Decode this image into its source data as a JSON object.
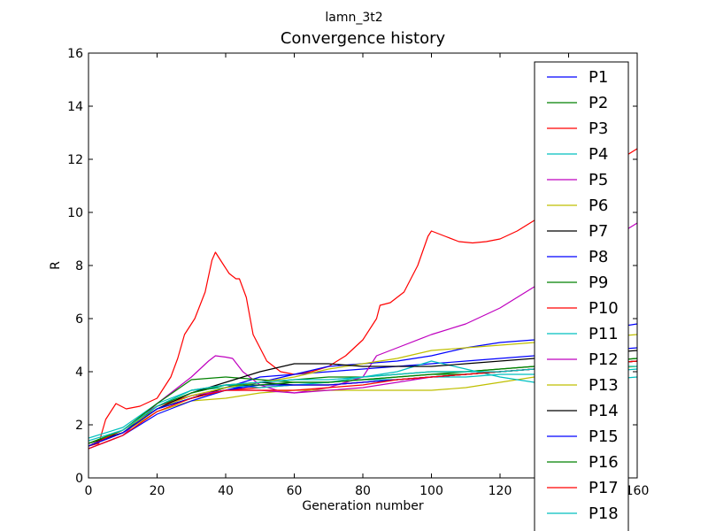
{
  "suptitle": "lamn_3t2",
  "chart_data": {
    "type": "line",
    "title": "Convergence history",
    "xlabel": "Generation number",
    "ylabel": "R",
    "xlim": [
      0,
      160
    ],
    "ylim": [
      0,
      16
    ],
    "xticks": [
      "0",
      "20",
      "40",
      "60",
      "80",
      "100",
      "120",
      "140",
      "160"
    ],
    "yticks": [
      "0",
      "2",
      "4",
      "6",
      "8",
      "10",
      "12",
      "14",
      "16"
    ],
    "grid": false,
    "legend_position": "right",
    "series": [
      {
        "name": "P1",
        "color": "#0000ff",
        "x": [
          0,
          10,
          20,
          30,
          40,
          50,
          60,
          70,
          80,
          90,
          100,
          110,
          120,
          130,
          140,
          150,
          160
        ],
        "y": [
          1.2,
          1.8,
          2.6,
          3.0,
          3.4,
          3.8,
          3.9,
          4.0,
          4.1,
          4.2,
          4.3,
          4.4,
          4.5,
          4.6,
          4.7,
          4.8,
          4.9
        ]
      },
      {
        "name": "P2",
        "color": "#008000",
        "x": [
          0,
          10,
          20,
          30,
          40,
          50,
          60,
          70,
          80,
          90,
          100,
          110,
          120,
          130,
          140,
          150,
          160
        ],
        "y": [
          1.3,
          1.7,
          2.7,
          3.3,
          3.5,
          3.6,
          3.7,
          3.8,
          3.8,
          3.9,
          4.0,
          4.0,
          4.1,
          4.2,
          4.3,
          4.4,
          4.5
        ]
      },
      {
        "name": "P3",
        "color": "#ff0000",
        "x": [
          0,
          3,
          5,
          8,
          11,
          15,
          20,
          24,
          26,
          28,
          31,
          34,
          36,
          37,
          39,
          41,
          43,
          44,
          46,
          48,
          52,
          56,
          60,
          65,
          70,
          75,
          80,
          84,
          85,
          88,
          92,
          96,
          99,
          100,
          104,
          108,
          112,
          116,
          120,
          125,
          130,
          135,
          140,
          150,
          160
        ],
        "y": [
          1.2,
          1.3,
          2.2,
          2.8,
          2.6,
          2.7,
          3.0,
          3.8,
          4.5,
          5.4,
          6.0,
          7.0,
          8.2,
          8.5,
          8.1,
          7.7,
          7.5,
          7.5,
          6.8,
          5.4,
          4.4,
          4.0,
          3.9,
          4.0,
          4.2,
          4.6,
          5.2,
          6.0,
          6.5,
          6.6,
          7.0,
          8.0,
          9.1,
          9.3,
          9.1,
          8.9,
          8.85,
          8.9,
          9.0,
          9.3,
          9.7,
          10.2,
          10.8,
          11.6,
          12.4
        ]
      },
      {
        "name": "P4",
        "color": "#00bfbf",
        "x": [
          0,
          10,
          20,
          30,
          40,
          50,
          60,
          70,
          80,
          90,
          100,
          110,
          120,
          130,
          140,
          150,
          160
        ],
        "y": [
          1.5,
          1.9,
          2.8,
          3.3,
          3.4,
          3.5,
          3.6,
          3.6,
          3.7,
          3.7,
          3.8,
          3.8,
          3.9,
          3.9,
          4.0,
          4.0,
          4.1
        ]
      },
      {
        "name": "P5",
        "color": "#bf00bf",
        "x": [
          0,
          10,
          20,
          30,
          35,
          37,
          40,
          42,
          45,
          50,
          55,
          60,
          65,
          70,
          75,
          80,
          84,
          90,
          100,
          110,
          120,
          130,
          140,
          150,
          160
        ],
        "y": [
          1.1,
          1.6,
          2.8,
          3.8,
          4.4,
          4.6,
          4.55,
          4.5,
          4.0,
          3.5,
          3.3,
          3.2,
          3.3,
          3.4,
          3.6,
          3.8,
          4.6,
          4.9,
          5.4,
          5.8,
          6.4,
          7.2,
          8.0,
          8.8,
          9.6
        ]
      },
      {
        "name": "P6",
        "color": "#bfbf00",
        "x": [
          0,
          10,
          20,
          30,
          40,
          50,
          60,
          70,
          80,
          90,
          100,
          110,
          120,
          130,
          140,
          150,
          160
        ],
        "y": [
          1.2,
          1.7,
          2.5,
          2.9,
          3.0,
          3.2,
          3.3,
          3.3,
          3.3,
          3.3,
          3.3,
          3.4,
          3.6,
          3.8,
          4.0,
          4.1,
          4.2
        ]
      },
      {
        "name": "P7",
        "color": "#000000",
        "x": [
          0,
          10,
          20,
          30,
          40,
          50,
          60,
          70,
          80,
          90,
          100,
          110,
          120,
          130,
          140,
          150,
          160
        ],
        "y": [
          1.3,
          1.7,
          2.6,
          3.0,
          3.4,
          3.6,
          3.5,
          3.5,
          3.6,
          3.7,
          3.8,
          3.9,
          4.0,
          4.1,
          4.2,
          4.3,
          4.4
        ]
      },
      {
        "name": "P8",
        "color": "#0000ff",
        "x": [
          0,
          10,
          20,
          30,
          40,
          50,
          60,
          70,
          80,
          90,
          100,
          110,
          120,
          130,
          140,
          150,
          160
        ],
        "y": [
          1.1,
          1.6,
          2.4,
          2.9,
          3.3,
          3.6,
          3.9,
          4.2,
          4.3,
          4.4,
          4.6,
          4.9,
          5.1,
          5.2,
          5.4,
          5.6,
          5.8
        ]
      },
      {
        "name": "P9",
        "color": "#008000",
        "x": [
          0,
          10,
          20,
          30,
          40,
          50,
          60,
          70,
          80,
          90,
          100,
          110,
          120,
          130,
          140,
          150,
          160
        ],
        "y": [
          1.2,
          1.8,
          2.8,
          3.7,
          3.8,
          3.7,
          3.6,
          3.6,
          3.7,
          3.8,
          3.9,
          4.0,
          4.1,
          4.2,
          4.3,
          4.4,
          4.5
        ]
      },
      {
        "name": "P10",
        "color": "#ff0000",
        "x": [
          0,
          10,
          20,
          30,
          40,
          50,
          60,
          70,
          80,
          90,
          100,
          110,
          120,
          130,
          140,
          150,
          160
        ],
        "y": [
          1.2,
          1.8,
          2.7,
          3.1,
          3.3,
          3.4,
          3.5,
          3.5,
          3.6,
          3.7,
          3.8,
          3.9,
          4.0,
          4.1,
          4.2,
          4.3,
          4.4
        ]
      },
      {
        "name": "P11",
        "color": "#00bfbf",
        "x": [
          0,
          10,
          20,
          30,
          40,
          50,
          60,
          70,
          80,
          90,
          100,
          110,
          120,
          130,
          140,
          150,
          160
        ],
        "y": [
          1.3,
          1.8,
          2.7,
          3.2,
          3.5,
          3.4,
          3.5,
          3.6,
          3.8,
          4.0,
          4.4,
          4.1,
          3.8,
          3.6,
          3.6,
          3.7,
          3.8
        ]
      },
      {
        "name": "P12",
        "color": "#bf00bf",
        "x": [
          0,
          10,
          20,
          30,
          40,
          50,
          60,
          70,
          80,
          90,
          100,
          110,
          120,
          130,
          140,
          150,
          160
        ],
        "y": [
          1.2,
          1.7,
          2.6,
          3.1,
          3.3,
          3.3,
          3.2,
          3.3,
          3.4,
          3.6,
          3.8,
          3.9,
          4.0,
          4.1,
          4.2,
          4.3,
          4.4
        ]
      },
      {
        "name": "P13",
        "color": "#bfbf00",
        "x": [
          0,
          10,
          20,
          30,
          40,
          50,
          60,
          70,
          80,
          90,
          100,
          110,
          120,
          130,
          140,
          150,
          160
        ],
        "y": [
          1.3,
          1.8,
          2.6,
          3.1,
          3.4,
          3.6,
          3.8,
          4.1,
          4.3,
          4.5,
          4.8,
          4.9,
          5.0,
          5.1,
          5.2,
          5.3,
          5.4
        ]
      },
      {
        "name": "P14",
        "color": "#000000",
        "x": [
          0,
          10,
          20,
          30,
          40,
          50,
          60,
          70,
          80,
          90,
          100,
          110,
          120,
          130,
          140,
          150,
          160
        ],
        "y": [
          1.2,
          1.7,
          2.6,
          3.2,
          3.6,
          4.0,
          4.3,
          4.3,
          4.2,
          4.2,
          4.2,
          4.3,
          4.4,
          4.5,
          4.6,
          4.7,
          4.8
        ]
      },
      {
        "name": "P15",
        "color": "#0000ff",
        "x": [
          0,
          10,
          20,
          30,
          40,
          50,
          60,
          70,
          80,
          90,
          100,
          110,
          120,
          130,
          140,
          150,
          160
        ],
        "y": [
          1.2,
          1.7,
          2.6,
          3.0,
          3.3,
          3.5,
          3.5,
          3.5,
          3.6,
          3.7,
          3.8,
          3.9,
          4.0,
          4.1,
          4.2,
          4.3,
          4.4
        ]
      },
      {
        "name": "P16",
        "color": "#008000",
        "x": [
          0,
          10,
          20,
          30,
          40,
          50,
          60,
          70,
          80,
          90,
          100,
          110,
          120,
          130,
          140,
          150,
          160
        ],
        "y": [
          1.3,
          1.8,
          2.7,
          3.2,
          3.5,
          3.5,
          3.6,
          3.6,
          3.7,
          3.8,
          3.9,
          3.9,
          4.0,
          4.1,
          4.2,
          4.3,
          4.4
        ]
      },
      {
        "name": "P17",
        "color": "#ff0000",
        "x": [
          0,
          10,
          20,
          30,
          40,
          50,
          60,
          70,
          80,
          90,
          100,
          110,
          120,
          130,
          140,
          150,
          160
        ],
        "y": [
          1.1,
          1.6,
          2.5,
          3.0,
          3.3,
          3.3,
          3.3,
          3.4,
          3.5,
          3.7,
          3.8,
          3.9,
          4.0,
          4.1,
          4.2,
          4.3,
          4.4
        ]
      },
      {
        "name": "P18",
        "color": "#00bfbf",
        "x": [
          0,
          10,
          20,
          30,
          40,
          50,
          60,
          70,
          80,
          90,
          100,
          110,
          120,
          130,
          140,
          150,
          160
        ],
        "y": [
          1.4,
          1.8,
          2.7,
          3.3,
          3.5,
          3.6,
          3.7,
          3.7,
          3.8,
          3.9,
          4.0,
          4.0,
          4.0,
          4.1,
          4.1,
          4.2,
          4.2
        ]
      }
    ]
  }
}
